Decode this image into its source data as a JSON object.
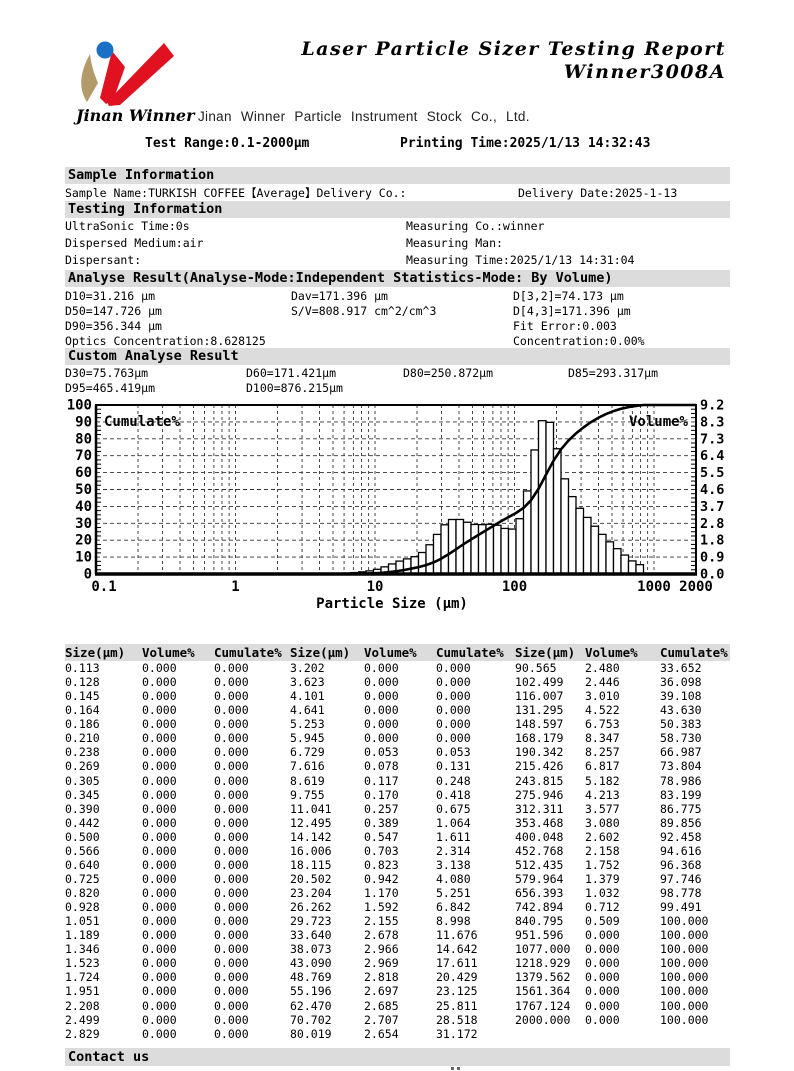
{
  "header": {
    "title_line1": "Laser Particle Sizer Testing Report",
    "title_line2": "Winner3008A",
    "logo_text": "Jinan Winner",
    "company": "Jinan Winner Particle Instrument Stock Co., Ltd.",
    "test_range": "Test Range:0.1-2000μm",
    "printing_time": "Printing Time:2025/1/13 14:32:43",
    "logo_colors": {
      "tan": "#b29a6b",
      "red": "#e01222",
      "blue": "#1b6fc4"
    }
  },
  "sample_info": {
    "section_title": "Sample Information",
    "sample_line_left": "Sample Name:TURKISH COFFEE【Average】Delivery Co.:",
    "delivery_date": "Delivery Date:2025-1-13"
  },
  "testing_info": {
    "section_title": "Testing Information",
    "rows": [
      {
        "left": "UltraSonic Time:0s",
        "right": "Measuring Co.:winner"
      },
      {
        "left": "Dispersed Medium:air",
        "right": "Measuring Man:"
      },
      {
        "left": "Dispersant:",
        "right": "Measuring Time:2025/1/13 14:31:04"
      }
    ]
  },
  "analyse_result": {
    "section_title": "Analyse Result(Analyse-Mode:Independent  Statistics-Mode: By Volume)",
    "rows": [
      [
        "D10=31.216 μm",
        "Dav=171.396 μm",
        "D[3,2]=74.173 μm"
      ],
      [
        "D50=147.726 μm",
        "S/V=808.917 cm^2/cm^3",
        "D[4,3]=171.396 μm"
      ],
      [
        "D90=356.344 μm",
        "",
        "Fit Error:0.003"
      ],
      [
        "Optics Concentration:8.628125",
        "",
        "Concentration:0.00%"
      ]
    ]
  },
  "custom_analyse": {
    "section_title": "Custom Analyse Result",
    "rows": [
      [
        "D30=75.763μm",
        "D60=171.421μm",
        "D80=250.872μm",
        "D85=293.317μm"
      ],
      [
        "D95=465.419μm",
        "D100=876.215μm",
        "",
        ""
      ]
    ]
  },
  "chart_data": {
    "type": "bar",
    "subtype": "histogram-with-cumulative-line",
    "title": "",
    "xlabel": "Particle Size (μm)",
    "x_scale": "log",
    "x_range": [
      0.1,
      2000
    ],
    "x_ticks": [
      "0.1",
      "1",
      "10",
      "100",
      "1000",
      "2000"
    ],
    "left_axis_label": "Cumulate%",
    "left_axis_range": [
      0,
      100
    ],
    "left_axis_ticks": [
      "100",
      "90",
      "80",
      "70",
      "60",
      "50",
      "40",
      "30",
      "20",
      "10",
      "0"
    ],
    "right_axis_label": "Volume%",
    "right_axis_range": [
      0,
      9.2
    ],
    "right_axis_ticks": [
      "9.2",
      "8.3",
      "7.3",
      "6.4",
      "5.5",
      "4.6",
      "3.7",
      "2.8",
      "1.8",
      "0.9",
      "0.0"
    ],
    "grid": "dashed",
    "sizes": [
      0.113,
      0.128,
      0.145,
      0.164,
      0.186,
      0.21,
      0.238,
      0.269,
      0.305,
      0.345,
      0.39,
      0.442,
      0.5,
      0.566,
      0.64,
      0.725,
      0.82,
      0.928,
      1.051,
      1.189,
      1.346,
      1.523,
      1.724,
      1.951,
      2.208,
      2.499,
      2.829,
      3.202,
      3.623,
      4.101,
      4.641,
      5.253,
      5.945,
      6.729,
      7.616,
      8.619,
      9.755,
      11.041,
      12.495,
      14.142,
      16.006,
      18.115,
      20.502,
      23.204,
      26.262,
      29.723,
      33.64,
      38.073,
      43.09,
      48.769,
      55.196,
      62.47,
      70.702,
      80.019,
      90.565,
      102.499,
      116.007,
      131.295,
      148.597,
      168.179,
      190.342,
      215.426,
      243.815,
      275.946,
      312.311,
      353.468,
      400.048,
      452.768,
      512.435,
      579.964,
      656.393,
      742.894,
      840.795,
      951.596,
      1077.0,
      1218.929,
      1379.562,
      1561.364,
      1767.124,
      2000.0
    ],
    "volume": [
      0,
      0,
      0,
      0,
      0,
      0,
      0,
      0,
      0,
      0,
      0,
      0,
      0,
      0,
      0,
      0,
      0,
      0,
      0,
      0,
      0,
      0,
      0,
      0,
      0,
      0,
      0,
      0,
      0,
      0,
      0,
      0,
      0,
      0.053,
      0.078,
      0.117,
      0.17,
      0.257,
      0.389,
      0.547,
      0.703,
      0.823,
      0.942,
      1.17,
      1.592,
      2.155,
      2.678,
      2.966,
      2.969,
      2.818,
      2.697,
      2.685,
      2.707,
      2.654,
      2.48,
      2.446,
      3.01,
      4.522,
      6.753,
      8.347,
      8.257,
      6.817,
      5.182,
      4.213,
      3.577,
      3.08,
      2.602,
      2.158,
      1.752,
      1.379,
      1.032,
      0.712,
      0.509,
      0,
      0,
      0,
      0,
      0,
      0,
      0
    ],
    "cumulate": [
      0,
      0,
      0,
      0,
      0,
      0,
      0,
      0,
      0,
      0,
      0,
      0,
      0,
      0,
      0,
      0,
      0,
      0,
      0,
      0,
      0,
      0,
      0,
      0,
      0,
      0,
      0,
      0,
      0,
      0,
      0,
      0,
      0,
      0.053,
      0.131,
      0.248,
      0.418,
      0.675,
      1.064,
      1.611,
      2.314,
      3.138,
      4.08,
      5.251,
      6.842,
      8.998,
      11.676,
      14.642,
      17.611,
      20.429,
      23.125,
      25.811,
      28.518,
      31.172,
      33.652,
      36.098,
      39.108,
      43.63,
      50.383,
      58.73,
      66.987,
      73.804,
      78.986,
      83.199,
      86.775,
      89.856,
      92.458,
      94.616,
      96.368,
      97.746,
      98.778,
      99.491,
      100.0,
      100.0,
      100.0,
      100.0,
      100.0,
      100.0,
      100.0,
      100.0
    ]
  },
  "table": {
    "headers": [
      "Size(μm)",
      "Volume%",
      "Cumulate%",
      "Size(μm)",
      "Volume%",
      "Cumulate%",
      "Size(μm)",
      "Volume%",
      "Cumulate%"
    ],
    "groups": [
      [
        [
          "0.113",
          "0.000",
          "0.000"
        ],
        [
          "0.128",
          "0.000",
          "0.000"
        ],
        [
          "0.145",
          "0.000",
          "0.000"
        ],
        [
          "0.164",
          "0.000",
          "0.000"
        ],
        [
          "0.186",
          "0.000",
          "0.000"
        ],
        [
          "0.210",
          "0.000",
          "0.000"
        ],
        [
          "0.238",
          "0.000",
          "0.000"
        ],
        [
          "0.269",
          "0.000",
          "0.000"
        ],
        [
          "0.305",
          "0.000",
          "0.000"
        ],
        [
          "0.345",
          "0.000",
          "0.000"
        ],
        [
          "0.390",
          "0.000",
          "0.000"
        ],
        [
          "0.442",
          "0.000",
          "0.000"
        ],
        [
          "0.500",
          "0.000",
          "0.000"
        ],
        [
          "0.566",
          "0.000",
          "0.000"
        ],
        [
          "0.640",
          "0.000",
          "0.000"
        ],
        [
          "0.725",
          "0.000",
          "0.000"
        ],
        [
          "0.820",
          "0.000",
          "0.000"
        ],
        [
          "0.928",
          "0.000",
          "0.000"
        ],
        [
          "1.051",
          "0.000",
          "0.000"
        ],
        [
          "1.189",
          "0.000",
          "0.000"
        ],
        [
          "1.346",
          "0.000",
          "0.000"
        ],
        [
          "1.523",
          "0.000",
          "0.000"
        ],
        [
          "1.724",
          "0.000",
          "0.000"
        ],
        [
          "1.951",
          "0.000",
          "0.000"
        ],
        [
          "2.208",
          "0.000",
          "0.000"
        ],
        [
          "2.499",
          "0.000",
          "0.000"
        ],
        [
          "2.829",
          "0.000",
          "0.000"
        ]
      ],
      [
        [
          "3.202",
          "0.000",
          "0.000"
        ],
        [
          "3.623",
          "0.000",
          "0.000"
        ],
        [
          "4.101",
          "0.000",
          "0.000"
        ],
        [
          "4.641",
          "0.000",
          "0.000"
        ],
        [
          "5.253",
          "0.000",
          "0.000"
        ],
        [
          "5.945",
          "0.000",
          "0.000"
        ],
        [
          "6.729",
          "0.053",
          "0.053"
        ],
        [
          "7.616",
          "0.078",
          "0.131"
        ],
        [
          "8.619",
          "0.117",
          "0.248"
        ],
        [
          "9.755",
          "0.170",
          "0.418"
        ],
        [
          "11.041",
          "0.257",
          "0.675"
        ],
        [
          "12.495",
          "0.389",
          "1.064"
        ],
        [
          "14.142",
          "0.547",
          "1.611"
        ],
        [
          "16.006",
          "0.703",
          "2.314"
        ],
        [
          "18.115",
          "0.823",
          "3.138"
        ],
        [
          "20.502",
          "0.942",
          "4.080"
        ],
        [
          "23.204",
          "1.170",
          "5.251"
        ],
        [
          "26.262",
          "1.592",
          "6.842"
        ],
        [
          "29.723",
          "2.155",
          "8.998"
        ],
        [
          "33.640",
          "2.678",
          "11.676"
        ],
        [
          "38.073",
          "2.966",
          "14.642"
        ],
        [
          "43.090",
          "2.969",
          "17.611"
        ],
        [
          "48.769",
          "2.818",
          "20.429"
        ],
        [
          "55.196",
          "2.697",
          "23.125"
        ],
        [
          "62.470",
          "2.685",
          "25.811"
        ],
        [
          "70.702",
          "2.707",
          "28.518"
        ],
        [
          "80.019",
          "2.654",
          "31.172"
        ]
      ],
      [
        [
          "90.565",
          "2.480",
          "33.652"
        ],
        [
          "102.499",
          "2.446",
          "36.098"
        ],
        [
          "116.007",
          "3.010",
          "39.108"
        ],
        [
          "131.295",
          "4.522",
          "43.630"
        ],
        [
          "148.597",
          "6.753",
          "50.383"
        ],
        [
          "168.179",
          "8.347",
          "58.730"
        ],
        [
          "190.342",
          "8.257",
          "66.987"
        ],
        [
          "215.426",
          "6.817",
          "73.804"
        ],
        [
          "243.815",
          "5.182",
          "78.986"
        ],
        [
          "275.946",
          "4.213",
          "83.199"
        ],
        [
          "312.311",
          "3.577",
          "86.775"
        ],
        [
          "353.468",
          "3.080",
          "89.856"
        ],
        [
          "400.048",
          "2.602",
          "92.458"
        ],
        [
          "452.768",
          "2.158",
          "94.616"
        ],
        [
          "512.435",
          "1.752",
          "96.368"
        ],
        [
          "579.964",
          "1.379",
          "97.746"
        ],
        [
          "656.393",
          "1.032",
          "98.778"
        ],
        [
          "742.894",
          "0.712",
          "99.491"
        ],
        [
          "840.795",
          "0.509",
          "100.000"
        ],
        [
          "951.596",
          "0.000",
          "100.000"
        ],
        [
          "1077.000",
          "0.000",
          "100.000"
        ],
        [
          "1218.929",
          "0.000",
          "100.000"
        ],
        [
          "1379.562",
          "0.000",
          "100.000"
        ],
        [
          "1561.364",
          "0.000",
          "100.000"
        ],
        [
          "1767.124",
          "0.000",
          "100.000"
        ],
        [
          "2000.000",
          "0.000",
          "100.000"
        ],
        [
          "",
          "",
          ""
        ]
      ]
    ]
  },
  "footer": {
    "section_title": "Contact us"
  }
}
